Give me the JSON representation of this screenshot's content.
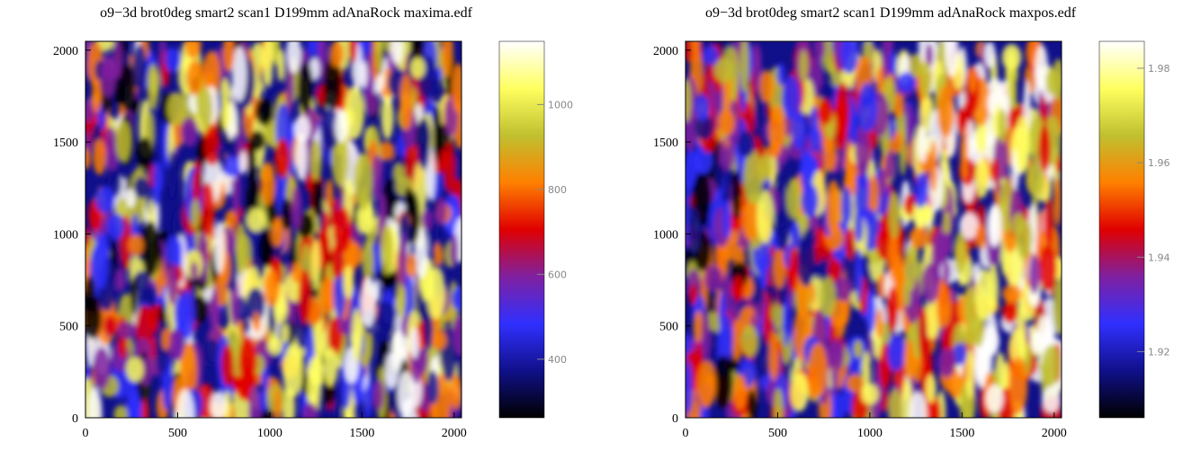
{
  "chart_data": [
    {
      "type": "heatmap",
      "title": "o9−3d  brot0deg  smart2  scan1  D199mm  adAnaRock  maxima.edf",
      "xlim": [
        0,
        2040
      ],
      "ylim": [
        0,
        2048
      ],
      "xticks": [
        0,
        500,
        1000,
        1500,
        2000
      ],
      "yticks": [
        0,
        500,
        1000,
        1500,
        2000
      ],
      "clim": [
        262,
        1149
      ],
      "cticks": [
        400,
        600,
        800,
        1000
      ],
      "colormap": [
        "#000000",
        "#10108a",
        "#3030ff",
        "#8020a0",
        "#e00000",
        "#ff8000",
        "#c0c030",
        "#ffff60",
        "#ffffff"
      ]
    },
    {
      "type": "heatmap",
      "title": "o9−3d  brot0deg  smart2  scan1  D199mm  adAnaRock  maxpos.edf",
      "xlim": [
        0,
        2040
      ],
      "ylim": [
        0,
        2048
      ],
      "xticks": [
        0,
        500,
        1000,
        1500,
        2000
      ],
      "yticks": [
        0,
        500,
        1000,
        1500,
        2000
      ],
      "clim": [
        1.906,
        1.9857
      ],
      "cticks": [
        1.92,
        1.94,
        1.96,
        1.98
      ],
      "colormap": [
        "#000000",
        "#10108a",
        "#3030ff",
        "#8020a0",
        "#e00000",
        "#ff8000",
        "#c0c030",
        "#ffff60",
        "#ffffff"
      ]
    }
  ]
}
